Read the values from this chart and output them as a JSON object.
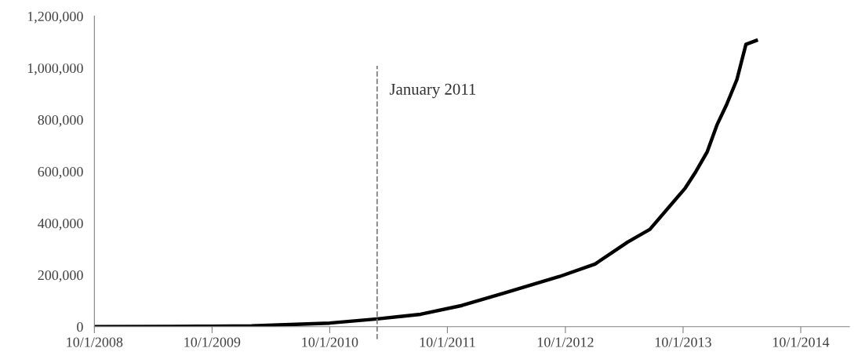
{
  "chart_data": {
    "type": "line",
    "x": [
      "2008-10-01",
      "2009-06-01",
      "2009-10-01",
      "2010-02-01",
      "2010-10-01",
      "2011-02-25",
      "2011-07-10",
      "2011-11-15",
      "2012-03-25",
      "2012-09-13",
      "2013-01-01",
      "2013-04-12",
      "2013-06-20",
      "2013-10-08",
      "2013-11-10",
      "2013-12-15",
      "2014-01-15",
      "2014-02-13",
      "2014-03-17",
      "2014-04-14",
      "2014-05-16"
    ],
    "series": [
      {
        "color": "#000000",
        "values": [
          0,
          1000,
          2000,
          3000,
          14000,
          30000,
          48000,
          82000,
          130000,
          194000,
          242000,
          327000,
          376000,
          536000,
          600000,
          676000,
          782000,
          858000,
          955000,
          1091000,
          1106000
        ]
      }
    ],
    "xlim": [
      "2008-10-01",
      "2015-03-01"
    ],
    "xticks": [
      {
        "value": "2008-10-01",
        "label": "10/1/2008"
      },
      {
        "value": "2009-10-01",
        "label": "10/1/2009"
      },
      {
        "value": "2010-10-01",
        "label": "10/1/2010"
      },
      {
        "value": "2011-10-01",
        "label": "10/1/2011"
      },
      {
        "value": "2012-10-01",
        "label": "10/1/2012"
      },
      {
        "value": "2013-10-01",
        "label": "10/1/2013"
      },
      {
        "value": "2014-10-01",
        "label": "10/1/2014"
      }
    ],
    "ylim": [
      0,
      1200000
    ],
    "yticks": [
      0,
      {
        "value": 200000,
        "label": "200,000"
      },
      {
        "value": 400000,
        "label": "400,000"
      },
      {
        "value": 600000,
        "label": "600,000"
      },
      {
        "value": 800000,
        "label": "800,000"
      },
      {
        "value": 1000000,
        "label": "1,000,000"
      },
      {
        "value": 1200000,
        "label": "1,200,000"
      }
    ],
    "ref_lines": [
      {
        "axis": "x",
        "value": "2011-02-25",
        "label": "January 2011",
        "color": "#808080",
        "line_style": "dashed"
      }
    ],
    "grid": false,
    "legend": false,
    "marker": "none",
    "line_style": "solid"
  }
}
